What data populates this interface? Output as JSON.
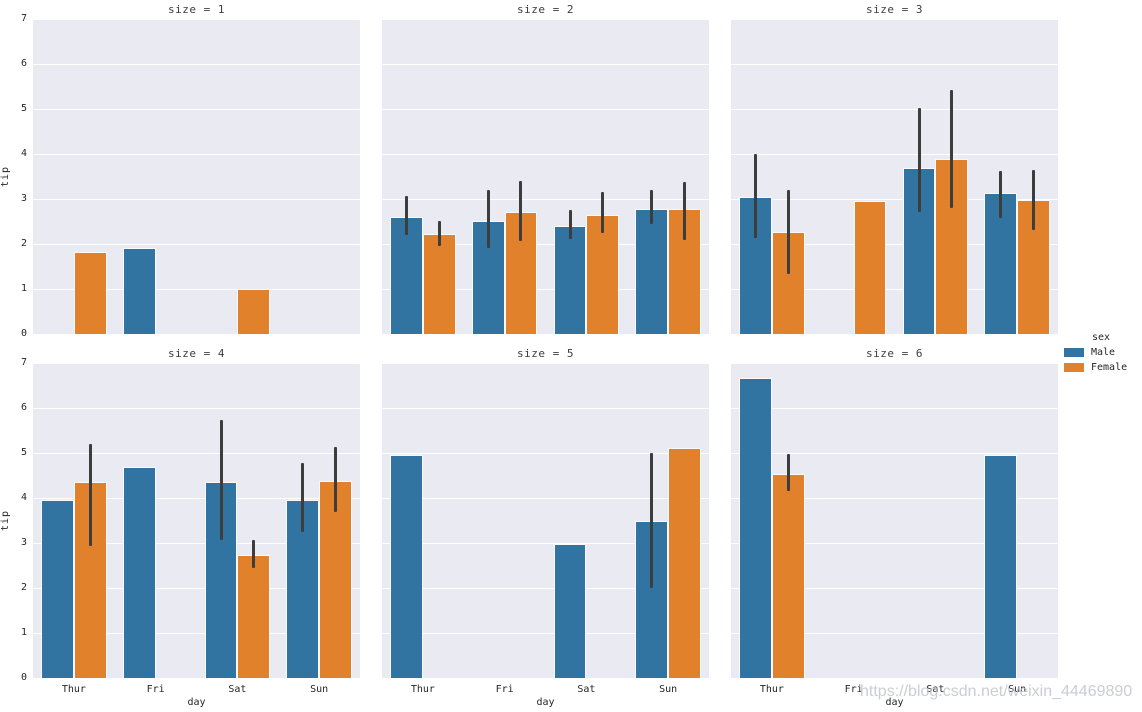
{
  "watermark": "https://blog.csdn.net/weixin_44469890",
  "colors": {
    "male": "#3274a1",
    "female": "#e1812c",
    "plot_bg": "#eaeaf2",
    "grid": "#ffffff",
    "errbar": "#3d3d3d",
    "text": "#262626",
    "watermark_color": "rgba(187,192,201,0.8)"
  },
  "legend": {
    "title": "sex",
    "items": [
      {
        "label": "Male",
        "color": "#3274a1"
      },
      {
        "label": "Female",
        "color": "#e1812c"
      }
    ]
  },
  "axes": {
    "ylabel": "tip",
    "xlabel": "day",
    "yticks": [
      0,
      1,
      2,
      3,
      4,
      5,
      6,
      7
    ],
    "ylim": [
      0,
      7
    ],
    "categories": [
      "Thur",
      "Fri",
      "Sat",
      "Sun"
    ],
    "grid": "horizontal-only",
    "legend_position": "right"
  },
  "chart_data": [
    {
      "type": "bar",
      "title": "size = 1",
      "categories": [
        "Thur",
        "Fri",
        "Sat",
        "Sun"
      ],
      "series": [
        {
          "name": "Male",
          "values": [
            null,
            1.92,
            null,
            null
          ],
          "ci": [
            null,
            null,
            null,
            null
          ]
        },
        {
          "name": "Female",
          "values": [
            1.83,
            null,
            1.0,
            null
          ],
          "ci": [
            null,
            null,
            null,
            null
          ]
        }
      ]
    },
    {
      "type": "bar",
      "title": "size = 2",
      "categories": [
        "Thur",
        "Fri",
        "Sat",
        "Sun"
      ],
      "series": [
        {
          "name": "Male",
          "values": [
            2.61,
            2.52,
            2.4,
            2.78
          ],
          "ci": [
            [
              2.2,
              3.07
            ],
            [
              1.91,
              3.19
            ],
            [
              2.11,
              2.76
            ],
            [
              2.44,
              3.19
            ]
          ]
        },
        {
          "name": "Female",
          "values": [
            2.22,
            2.72,
            2.65,
            2.78
          ],
          "ci": [
            [
              1.95,
              2.52
            ],
            [
              2.07,
              3.4
            ],
            [
              2.24,
              3.15
            ],
            [
              2.08,
              3.37
            ]
          ]
        }
      ]
    },
    {
      "type": "bar",
      "title": "size = 3",
      "categories": [
        "Thur",
        "Fri",
        "Sat",
        "Sun"
      ],
      "series": [
        {
          "name": "Male",
          "values": [
            3.05,
            null,
            3.7,
            3.14
          ],
          "ci": [
            [
              2.14,
              4.0
            ],
            null,
            [
              2.72,
              5.03
            ],
            [
              2.57,
              3.63
            ]
          ]
        },
        {
          "name": "Female",
          "values": [
            2.26,
            2.96,
            3.89,
            2.98
          ],
          "ci": [
            [
              1.33,
              3.2
            ],
            null,
            [
              2.79,
              5.42
            ],
            [
              2.31,
              3.65
            ]
          ]
        }
      ]
    },
    {
      "type": "bar",
      "title": "size = 4",
      "categories": [
        "Thur",
        "Fri",
        "Sat",
        "Sun"
      ],
      "series": [
        {
          "name": "Male",
          "values": [
            3.96,
            4.7,
            4.35,
            3.96
          ],
          "ci": [
            null,
            null,
            [
              3.07,
              5.73
            ],
            [
              3.24,
              4.78
            ]
          ]
        },
        {
          "name": "Female",
          "values": [
            4.35,
            null,
            2.74,
            4.37
          ],
          "ci": [
            [
              2.94,
              5.19
            ],
            null,
            [
              2.44,
              3.07
            ],
            [
              3.68,
              5.13
            ]
          ]
        }
      ]
    },
    {
      "type": "bar",
      "title": "size = 5",
      "categories": [
        "Thur",
        "Fri",
        "Sat",
        "Sun"
      ],
      "series": [
        {
          "name": "Male",
          "values": [
            4.96,
            null,
            2.98,
            3.48
          ],
          "ci": [
            null,
            null,
            null,
            [
              2.0,
              5.01
            ]
          ]
        },
        {
          "name": "Female",
          "values": [
            null,
            null,
            null,
            5.11
          ],
          "ci": [
            null,
            null,
            null,
            null
          ]
        }
      ]
    },
    {
      "type": "bar",
      "title": "size = 6",
      "categories": [
        "Thur",
        "Fri",
        "Sat",
        "Sun"
      ],
      "series": [
        {
          "name": "Male",
          "values": [
            6.66,
            null,
            null,
            4.95
          ],
          "ci": [
            null,
            null,
            null,
            null
          ]
        },
        {
          "name": "Female",
          "values": [
            4.54,
            null,
            null,
            null
          ],
          "ci": [
            [
              4.15,
              4.97
            ],
            null,
            null,
            null
          ]
        }
      ]
    }
  ]
}
